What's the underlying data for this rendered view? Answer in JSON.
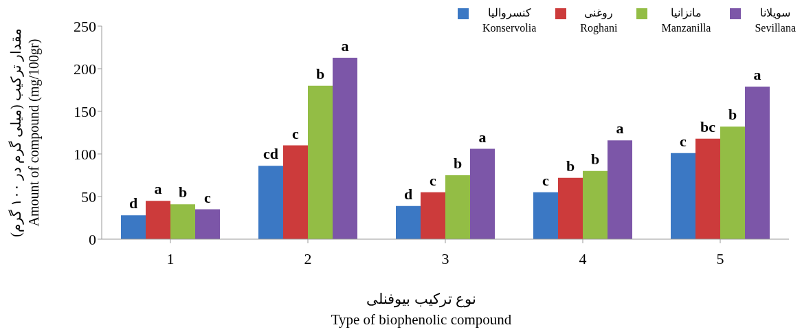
{
  "chart_data": {
    "type": "bar",
    "categories": [
      "1",
      "2",
      "3",
      "4",
      "5"
    ],
    "xlabel": "نوع ترکیب بیوفنلی\nType of biophenolic compound",
    "ylabel": "مقدار ترکیب (میلی گرم در ۱۰۰ گرم)\nAmount of compound (mg/100gr)",
    "ylim": [
      0,
      250
    ],
    "yticks": [
      0,
      50,
      100,
      150,
      200,
      250
    ],
    "grid": false,
    "legend": "top right",
    "series": [
      {
        "name": "کنسروالیا\nKonservolia",
        "color": "#3b78c4",
        "values": [
          28,
          86,
          39,
          55,
          101
        ],
        "value_labels": [
          "d",
          "cd",
          "d",
          "c",
          "c"
        ]
      },
      {
        "name": "روغنی\nRoghani",
        "color": "#cc3b3b",
        "values": [
          45,
          110,
          55,
          72,
          118
        ],
        "value_labels": [
          "a",
          "c",
          "c",
          "b",
          "bc"
        ]
      },
      {
        "name": "مانزانیا\nManzanilla",
        "color": "#93bd45",
        "values": [
          41,
          180,
          75,
          80,
          132
        ],
        "value_labels": [
          "b",
          "b",
          "b",
          "b",
          "b"
        ]
      },
      {
        "name": "سویلانا\nSevillana",
        "color": "#7c56a8",
        "values": [
          35,
          213,
          106,
          116,
          179
        ],
        "value_labels": [
          "c",
          "a",
          "a",
          "a",
          "a"
        ]
      }
    ]
  }
}
